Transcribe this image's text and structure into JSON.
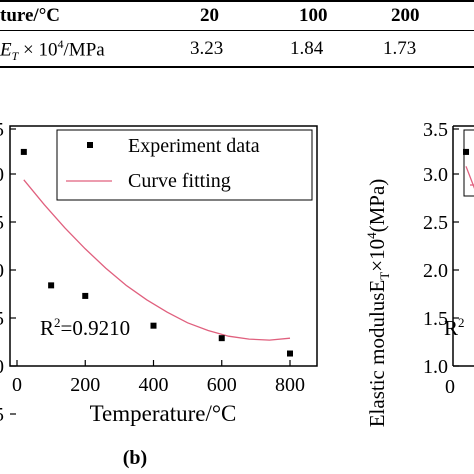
{
  "table": {
    "header_label": "ture/°C",
    "header_temps": [
      "20",
      "100",
      "200"
    ],
    "row_label": "E_T × 10^4/MPa",
    "row_values": [
      "3.23",
      "1.84",
      "1.73"
    ]
  },
  "chart_data": [
    {
      "type": "scatter",
      "xlabel": "Temperature/°C",
      "ylabel": "",
      "xlim": [
        0,
        900
      ],
      "ylim": [
        1.0,
        3.5
      ],
      "x_ticks": [
        "0",
        "200",
        "400",
        "600",
        "800"
      ],
      "y_ticks": [
        "5",
        "0",
        "5",
        "0",
        "5",
        "0",
        "5"
      ],
      "grid": false,
      "legend_position": "top-right",
      "series": [
        {
          "name": "Experiment data",
          "kind": "points",
          "color": "#000000",
          "x": [
            20,
            100,
            200,
            400,
            600,
            800
          ],
          "y": [
            3.23,
            1.84,
            1.73,
            1.42,
            1.29,
            1.13
          ]
        },
        {
          "name": "Curve fitting",
          "kind": "line",
          "color": "#e0607e",
          "x": [
            20,
            80,
            140,
            200,
            260,
            320,
            380,
            440,
            500,
            560,
            620,
            680,
            740,
            800
          ],
          "y": [
            2.94,
            2.68,
            2.44,
            2.22,
            2.02,
            1.84,
            1.69,
            1.56,
            1.45,
            1.37,
            1.31,
            1.28,
            1.27,
            1.29
          ]
        }
      ],
      "annotation": "R²=0.9210",
      "panel_label": "(b)"
    },
    {
      "type": "scatter",
      "ylabel": "Elastic modulusE_T×10⁴(MPa)",
      "ylim": [
        1.0,
        3.5
      ],
      "y_ticks": [
        "3.5",
        "3.0",
        "2.5",
        "2.0",
        "1.5",
        "1.0"
      ],
      "x_ticks": [
        "0"
      ],
      "series": [
        {
          "name": "",
          "kind": "points",
          "color": "#000000",
          "x": [
            20,
            100
          ],
          "y": [
            3.23,
            1.84
          ]
        },
        {
          "name": "",
          "kind": "line",
          "color": "#e0607e",
          "x": [
            20,
            60,
            100,
            140,
            180
          ],
          "y": [
            3.08,
            2.7,
            2.38,
            2.12,
            1.9
          ]
        }
      ],
      "annotation_fragment": "R²"
    }
  ]
}
